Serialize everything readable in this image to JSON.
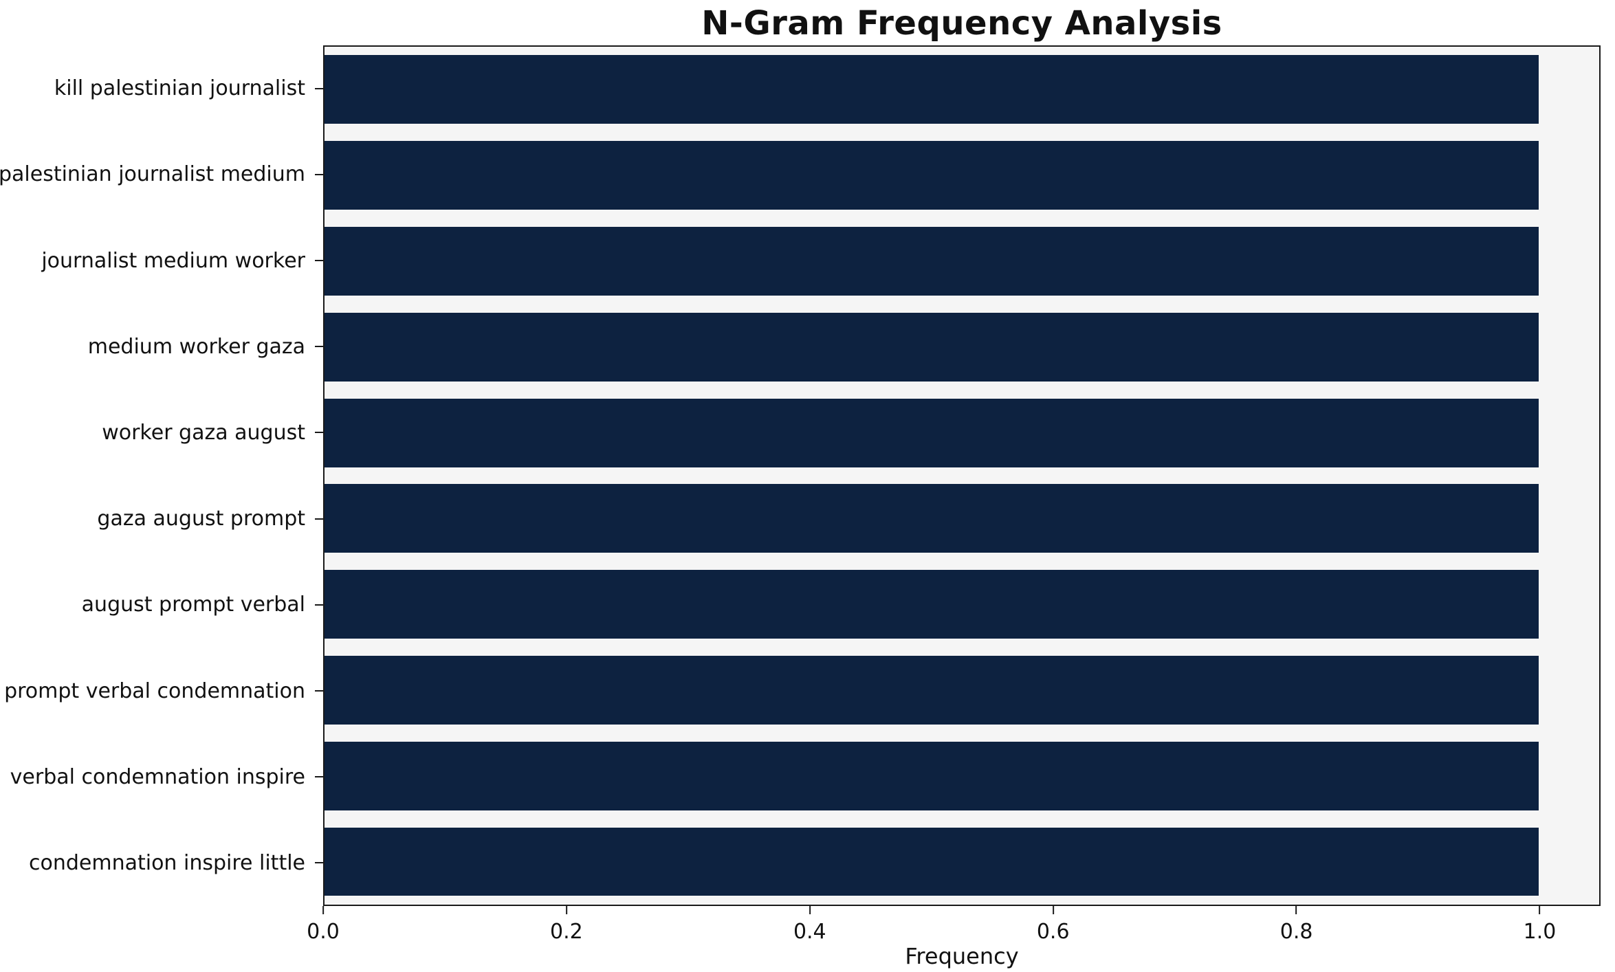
{
  "chart_data": {
    "type": "bar",
    "orientation": "horizontal",
    "title": "N-Gram Frequency Analysis",
    "xlabel": "Frequency",
    "ylabel": "",
    "categories": [
      "kill palestinian journalist",
      "palestinian journalist medium",
      "journalist medium worker",
      "medium worker gaza",
      "worker gaza august",
      "gaza august prompt",
      "august prompt verbal",
      "prompt verbal condemnation",
      "verbal condemnation inspire",
      "condemnation inspire little"
    ],
    "values": [
      1.0,
      1.0,
      1.0,
      1.0,
      1.0,
      1.0,
      1.0,
      1.0,
      1.0,
      1.0
    ],
    "xlim": [
      0,
      1.05
    ],
    "xtick_values": [
      0.0,
      0.2,
      0.4,
      0.6,
      0.8,
      1.0
    ],
    "xtick_labels": [
      "0.0",
      "0.2",
      "0.4",
      "0.6",
      "0.8",
      "1.0"
    ],
    "grid": false,
    "legend": null,
    "bar_color": "#0d2240",
    "plot_background": "#f5f5f5",
    "figure_background": "#ffffff",
    "axis_color": "#1a1a1a"
  }
}
